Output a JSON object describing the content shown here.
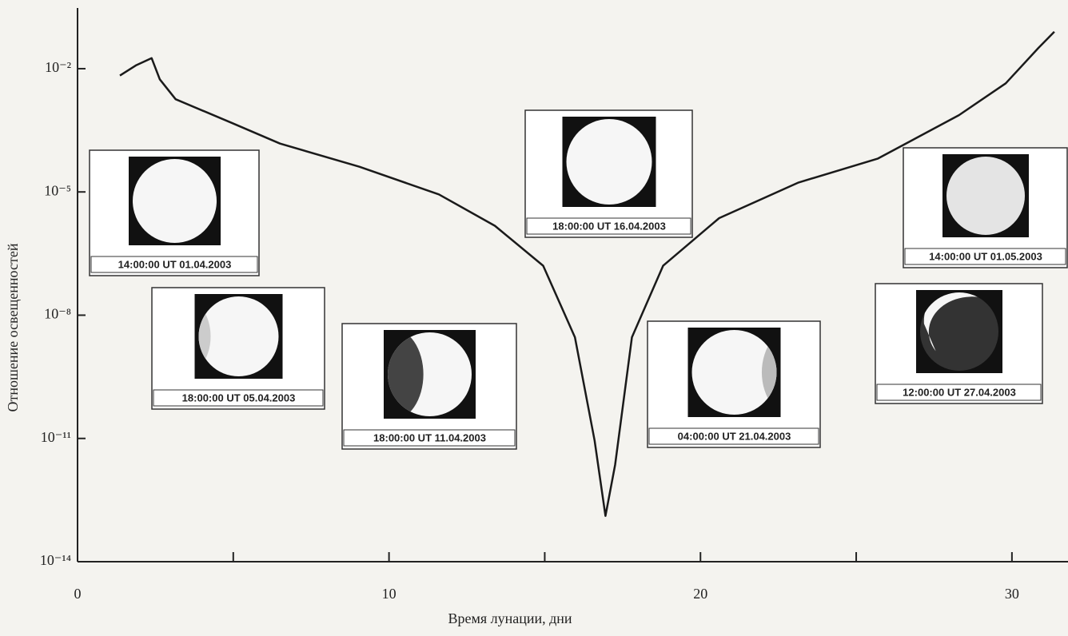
{
  "chart_data": {
    "type": "line",
    "x_label": "Время лунации, дни",
    "y_label": "Отношение освещенностей",
    "x": [
      1.36,
      1.87,
      2.38,
      2.64,
      3.15,
      4.95,
      6.5,
      9.05,
      11.6,
      13.4,
      14.95,
      15.97,
      16.6,
      16.95,
      17.26,
      17.8,
      18.8,
      20.6,
      23.15,
      25.7,
      28.3,
      29.8,
      30.85,
      31.36
    ],
    "values": [
      0.0068,
      0.012,
      0.018,
      0.0055,
      0.0018,
      0.00048,
      0.00015,
      4.1e-05,
      8.7e-06,
      1.5e-06,
      1.6e-07,
      2.9e-09,
      8.9e-12,
      1.3e-13,
      2.3e-12,
      2.9e-09,
      1.6e-07,
      2.3e-06,
      1.7e-05,
      6.5e-05,
      0.00074,
      0.0044,
      0.032,
      0.079
    ],
    "color": "#1a1a1a",
    "xlim": [
      0,
      31.8
    ],
    "xticks": [
      0,
      10,
      20,
      30
    ],
    "xminorticks": [
      5,
      15,
      25
    ],
    "ylim": [
      1e-14,
      0.3
    ],
    "yscale": "log",
    "yticks": [
      {
        "value": 1e-14,
        "label": "10⁻¹⁴"
      },
      {
        "value": 1e-11,
        "label": "10⁻¹¹"
      },
      {
        "value": 1e-08,
        "label": "10⁻⁸"
      },
      {
        "value": 1e-05,
        "label": "10⁻⁵"
      },
      {
        "value": 0.01,
        "label": "10⁻²"
      }
    ],
    "insets": [
      "14:00:00 UT 01.04.2003",
      "18:00:00 UT 05.04.2003",
      "18:00:00 UT 11.04.2003",
      "18:00:00 UT 16.04.2003",
      "04:00:00 UT 21.04.2003",
      "12:00:00 UT 27.04.2003",
      "14:00:00 UT 01.05.2003"
    ]
  }
}
